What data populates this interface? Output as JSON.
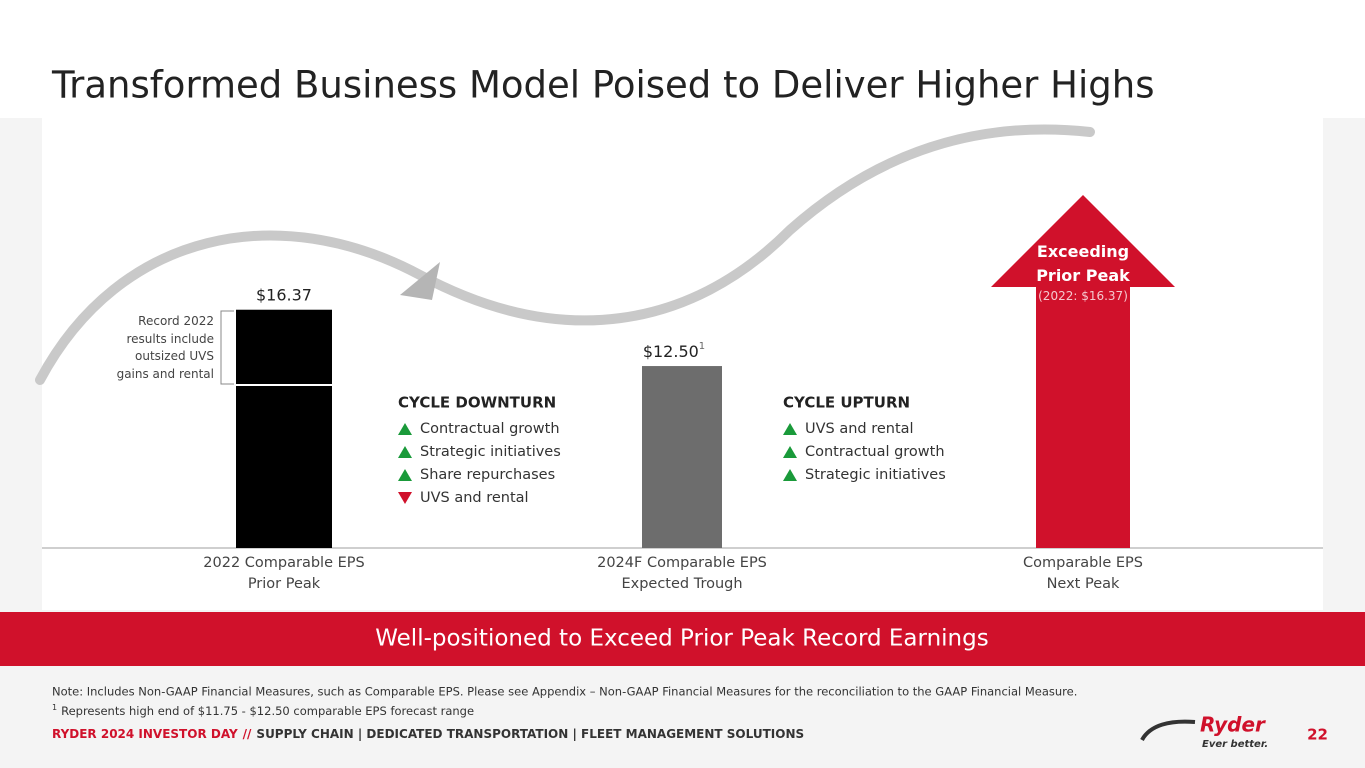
{
  "chart_data": {
    "type": "bar",
    "title": "Transformed Business Model Poised to Deliver Higher Highs",
    "categories": [
      "2022 Comparable EPS\nPrior Peak",
      "2024F Comparable EPS\nExpected Trough",
      "Comparable EPS\nNext Peak"
    ],
    "values": [
      16.37,
      12.5,
      null
    ],
    "value_labels": [
      "$16.37",
      "$12.50",
      null
    ],
    "colors": [
      "#000000",
      "#6d6d6d",
      "#d0112b"
    ],
    "ylim": [
      0,
      18
    ],
    "footnote_marker": "1",
    "bar_note": "Record 2022\nresults include\noutsized UVS\ngains and rental",
    "peak_label": "Exceeding\nPrior Peak",
    "peak_sublabel": "(2022: $16.37)",
    "lists": [
      {
        "heading": "CYCLE DOWNTURN",
        "items": [
          {
            "text": "Contractual growth",
            "trend": "up"
          },
          {
            "text": "Strategic initiatives",
            "trend": "up"
          },
          {
            "text": "Share repurchases",
            "trend": "up"
          },
          {
            "text": "UVS and rental",
            "trend": "down"
          }
        ]
      },
      {
        "heading": "CYCLE UPTURN",
        "items": [
          {
            "text": "UVS and rental",
            "trend": "up"
          },
          {
            "text": "Contractual growth",
            "trend": "up"
          },
          {
            "text": "Strategic initiatives",
            "trend": "up"
          }
        ]
      }
    ]
  },
  "banner": "Well-positioned to Exceed Prior Peak Record Earnings",
  "notes": [
    "Note: Includes Non-GAAP Financial Measures, such as Comparable EPS. Please see Appendix – Non-GAAP Financial Measures for the reconciliation to the GAAP Financial Measure.",
    "Represents high end of $11.75 - $12.50 comparable EPS forecast range"
  ],
  "note_marker": "1",
  "footer": {
    "event": "RYDER 2024 INVESTOR DAY",
    "separator": "//",
    "segments": "SUPPLY CHAIN  |  DEDICATED TRANSPORTATION  |  FLEET MANAGEMENT SOLUTIONS",
    "logo": "Ryder",
    "tagline": "Ever better.",
    "page": "22"
  }
}
